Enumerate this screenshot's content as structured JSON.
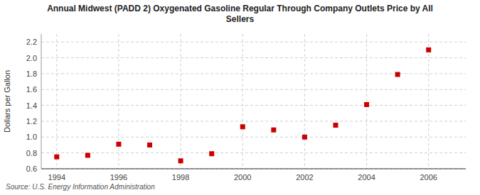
{
  "chart_data": {
    "type": "scatter",
    "title": "Annual Midwest (PADD 2) Oxygenated Gasoline Regular Through Company Outlets Price by All\nSellers",
    "ylabel": "Dollars per Gallon",
    "annotation": "Source: U.S. Energy Information Administration",
    "color": "#cc0000",
    "marker": "square",
    "grid": true,
    "xlim": [
      1993.5,
      2007.2
    ],
    "ylim": [
      0.6,
      2.3
    ],
    "xticks": [
      1994,
      1996,
      1998,
      2000,
      2002,
      2004,
      2006
    ],
    "yticks": [
      0.6,
      0.8,
      {
        "value": 1.0,
        "label": "1.0"
      },
      1.2,
      1.4,
      1.6,
      1.8,
      {
        "value": 2.0,
        "label": "2.0"
      },
      2.2
    ],
    "x": [
      1994,
      1995,
      1996,
      1997,
      1998,
      1999,
      2000,
      2001,
      2002,
      2003,
      2004,
      2005,
      2006
    ],
    "values": [
      0.75,
      0.77,
      0.91,
      0.9,
      0.7,
      0.79,
      1.13,
      1.09,
      1.0,
      1.15,
      1.41,
      1.79,
      2.1
    ]
  }
}
